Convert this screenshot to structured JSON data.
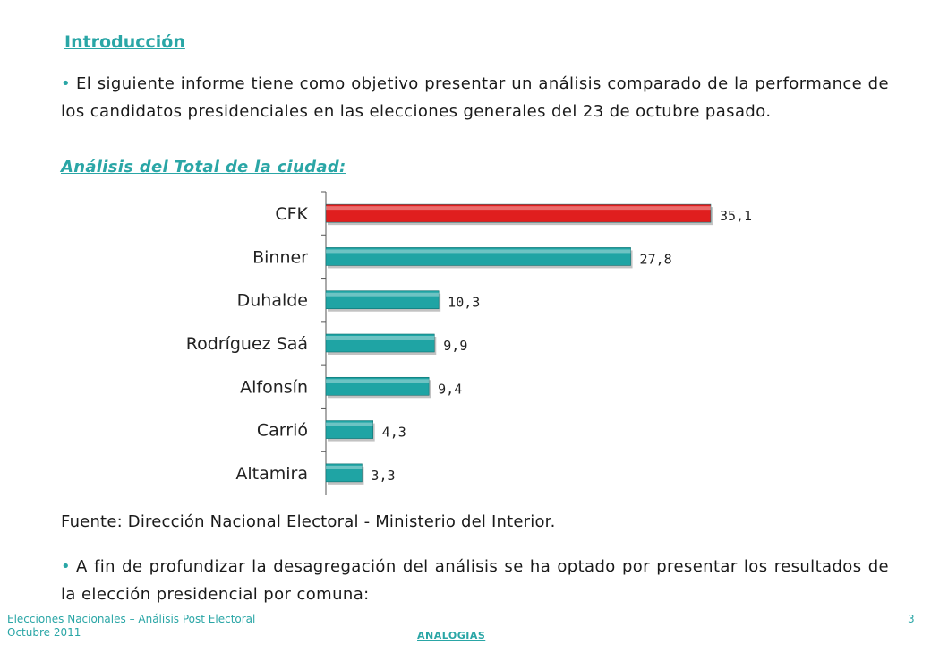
{
  "intro_heading": "Introducción",
  "paragraph1": "El siguiente informe tiene como objetivo presentar un análisis comparado de la performance de los candidatos presidenciales en las elecciones generales del 23 de octubre pasado.",
  "subheading": "Análisis del Total de la ciudad:",
  "chart_data": {
    "type": "bar",
    "orientation": "horizontal",
    "categories": [
      "CFK",
      "Binner",
      "Duhalde",
      "Rodríguez Saá",
      "Alfonsín",
      "Carrió",
      "Altamira"
    ],
    "values": [
      35.1,
      27.8,
      10.3,
      9.9,
      9.4,
      4.3,
      3.3
    ],
    "data_labels": [
      "35,1",
      "27,8",
      "10,3",
      "9,9",
      "9,4",
      "4,3",
      "3,3"
    ],
    "colors": [
      "#e01e1e",
      "#1fa4a4",
      "#1fa4a4",
      "#1fa4a4",
      "#1fa4a4",
      "#1fa4a4",
      "#1fa4a4"
    ],
    "title": "",
    "xlabel": "",
    "ylabel": "",
    "xlim": [
      0,
      40
    ],
    "grid": false,
    "legend": false
  },
  "source_text": "Fuente: Dirección Nacional Electoral - Ministerio del Interior.",
  "paragraph2": "A fin de profundizar la desagregación del análisis se ha optado por presentar los resultados de la elección presidencial por comuna:",
  "footer": {
    "line1": "Elecciones Nacionales – Análisis Post Electoral",
    "line2": "Octubre 2011",
    "brand": "ANALOGIAS",
    "page_number": "3"
  },
  "colors": {
    "accent": "#2aa6a6",
    "highlight_bar": "#e01e1e"
  }
}
